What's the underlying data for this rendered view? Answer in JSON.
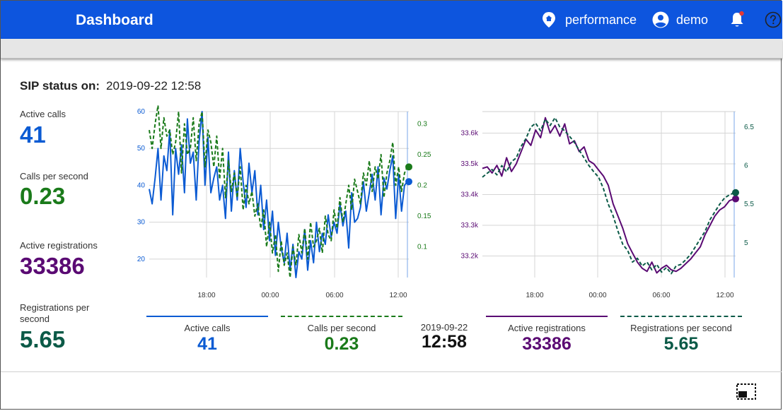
{
  "header": {
    "title": "Dashboard",
    "user_group": "performance",
    "user": "demo",
    "icons": {
      "group": "home-marker-icon",
      "user": "account-circle-icon",
      "notifications": "bell-icon",
      "help": "help-icon"
    }
  },
  "status": {
    "label": "SIP status on:",
    "timestamp": "2019-09-22 12:58"
  },
  "metrics": [
    {
      "label": "Active calls",
      "value": "41",
      "color": "#0b5bd3"
    },
    {
      "label": "Calls per second",
      "value": "0.23",
      "color": "#1a7a1a"
    },
    {
      "label": "Active registrations",
      "value": "33386",
      "color": "#5a0a73"
    },
    {
      "label": "Registrations per second",
      "value": "5.65",
      "color": "#0b5a47"
    }
  ],
  "legend": {
    "left": [
      {
        "label": "Active calls",
        "value": "41",
        "color": "#0b5bd3",
        "style": "solid"
      },
      {
        "label": "Calls per second",
        "value": "0.23",
        "color": "#1a7a1a",
        "style": "dashed"
      }
    ],
    "right": [
      {
        "label": "Active registrations",
        "value": "33386",
        "color": "#5a0a73",
        "style": "solid"
      },
      {
        "label": "Registrations per second",
        "value": "5.65",
        "color": "#0b5a47",
        "style": "dashed"
      }
    ],
    "current_date": "2019-09-22",
    "current_time": "12:58"
  },
  "chart_data": [
    {
      "type": "line",
      "x_ticks": [
        "18:00",
        "00:00",
        "06:00",
        "12:00"
      ],
      "y_left": {
        "ticks": [
          20,
          30,
          40,
          50,
          60
        ],
        "range": [
          15,
          60
        ]
      },
      "y_right": {
        "ticks": [
          0.1,
          0.15,
          0.2,
          0.25,
          0.3
        ],
        "range": [
          0.05,
          0.32
        ]
      },
      "series": [
        {
          "name": "Active calls",
          "axis": "left",
          "color": "#0b5bd3",
          "style": "solid",
          "values": [
            39,
            35,
            42,
            50,
            36,
            48,
            44,
            55,
            32,
            50,
            43,
            51,
            38,
            58,
            46,
            49,
            36,
            52,
            60,
            40,
            53,
            38,
            42,
            45,
            36,
            40,
            31,
            49,
            33,
            44,
            36,
            50,
            41,
            34,
            46,
            38,
            44,
            32,
            40,
            28,
            36,
            25,
            33,
            21,
            30,
            23,
            19,
            27,
            17,
            24,
            15,
            22,
            20,
            28,
            17,
            25,
            19,
            30,
            22,
            27,
            24,
            32,
            26,
            30,
            27,
            35,
            29,
            33,
            23,
            38,
            30,
            31,
            34,
            41,
            33,
            38,
            43,
            36,
            45,
            32,
            42,
            39,
            44,
            48,
            31,
            43,
            33,
            40,
            41
          ]
        },
        {
          "name": "Calls per second",
          "axis": "right",
          "color": "#1a7a1a",
          "style": "dashed",
          "values": [
            0.29,
            0.26,
            0.3,
            0.33,
            0.26,
            0.31,
            0.28,
            0.29,
            0.25,
            0.27,
            0.32,
            0.22,
            0.3,
            0.25,
            0.26,
            0.31,
            0.24,
            0.3,
            0.32,
            0.23,
            0.29,
            0.27,
            0.23,
            0.28,
            0.21,
            0.26,
            0.18,
            0.24,
            0.19,
            0.22,
            0.18,
            0.23,
            0.16,
            0.2,
            0.17,
            0.19,
            0.15,
            0.17,
            0.13,
            0.16,
            0.1,
            0.14,
            0.09,
            0.12,
            0.06,
            0.11,
            0.07,
            0.09,
            0.05,
            0.1,
            0.07,
            0.12,
            0.09,
            0.13,
            0.08,
            0.14,
            0.1,
            0.11,
            0.13,
            0.09,
            0.15,
            0.12,
            0.11,
            0.16,
            0.13,
            0.18,
            0.14,
            0.17,
            0.2,
            0.16,
            0.21,
            0.19,
            0.17,
            0.22,
            0.2,
            0.24,
            0.19,
            0.23,
            0.21,
            0.25,
            0.18,
            0.22,
            0.24,
            0.27,
            0.2,
            0.23,
            0.19,
            0.22,
            0.23
          ]
        }
      ]
    },
    {
      "type": "line",
      "x_ticks": [
        "18:00",
        "00:00",
        "06:00",
        "12:00"
      ],
      "y_left": {
        "ticks": [
          "33.2k",
          "33.3k",
          "33.4k",
          "33.5k",
          "33.6k"
        ],
        "tick_values": [
          33200,
          33300,
          33400,
          33500,
          33600
        ],
        "range": [
          33130,
          33670
        ]
      },
      "y_right": {
        "ticks": [
          5,
          5.5,
          6,
          6.5
        ],
        "range": [
          4.55,
          6.7
        ]
      },
      "series": [
        {
          "name": "Active registrations",
          "axis": "left",
          "color": "#5a0a73",
          "style": "solid",
          "values": [
            33485,
            33490,
            33470,
            33495,
            33460,
            33520,
            33475,
            33500,
            33540,
            33580,
            33560,
            33610,
            33585,
            33650,
            33600,
            33625,
            33590,
            33630,
            33565,
            33575,
            33540,
            33555,
            33510,
            33500,
            33480,
            33460,
            33430,
            33370,
            33330,
            33290,
            33240,
            33210,
            33180,
            33160,
            33150,
            33180,
            33145,
            33160,
            33170,
            33155,
            33150,
            33160,
            33175,
            33190,
            33210,
            33230,
            33270,
            33300,
            33330,
            33350,
            33360,
            33380,
            33386
          ]
        },
        {
          "name": "Registrations per second",
          "axis": "right",
          "color": "#0b5a47",
          "style": "dashed",
          "values": [
            5.85,
            5.9,
            5.95,
            5.88,
            6.0,
            5.92,
            6.05,
            6.1,
            6.25,
            6.35,
            6.5,
            6.55,
            6.45,
            6.6,
            6.52,
            6.62,
            6.5,
            6.45,
            6.38,
            6.3,
            6.2,
            6.1,
            6.0,
            5.92,
            5.85,
            5.7,
            5.5,
            5.35,
            5.15,
            4.98,
            4.9,
            4.75,
            4.8,
            4.7,
            4.75,
            4.65,
            4.72,
            4.62,
            4.68,
            4.6,
            4.7,
            4.72,
            4.78,
            4.85,
            4.95,
            5.05,
            5.15,
            5.3,
            5.4,
            5.5,
            5.58,
            5.62,
            5.65
          ]
        }
      ]
    }
  ]
}
